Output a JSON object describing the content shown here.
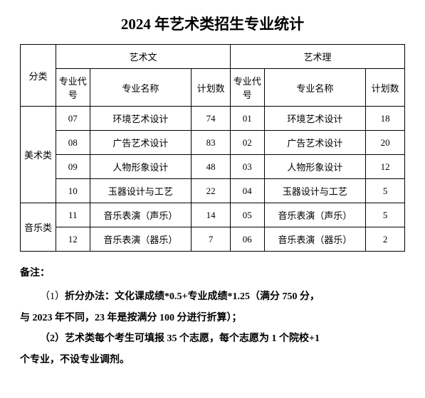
{
  "title": "2024 年艺术类招生专业统计",
  "table": {
    "header1": {
      "category": "分类",
      "arts_wen": "艺术文",
      "arts_li": "艺术理"
    },
    "header2": {
      "code": "专业代号",
      "name": "专业名称",
      "plan": "计划数",
      "plan2": "计划数"
    },
    "categories": [
      "美术类",
      "音乐类"
    ],
    "rows": [
      {
        "wc": "07",
        "wn": "环境艺术设计",
        "wp": "74",
        "lc": "01",
        "ln": "环境艺术设计",
        "lp": "18"
      },
      {
        "wc": "08",
        "wn": "广告艺术设计",
        "wp": "83",
        "lc": "02",
        "ln": "广告艺术设计",
        "lp": "20"
      },
      {
        "wc": "09",
        "wn": "人物形象设计",
        "wp": "48",
        "lc": "03",
        "ln": "人物形象设计",
        "lp": "12"
      },
      {
        "wc": "10",
        "wn": "玉器设计与工艺",
        "wp": "22",
        "lc": "04",
        "ln": "玉器设计与工艺",
        "lp": "5"
      },
      {
        "wc": "11",
        "wn": "音乐表演（声乐）",
        "wp": "14",
        "lc": "05",
        "ln": "音乐表演（声乐）",
        "lp": "5"
      },
      {
        "wc": "12",
        "wn": "音乐表演（器乐）",
        "wp": "7",
        "lc": "06",
        "ln": "音乐表演（器乐）",
        "lp": "2"
      }
    ]
  },
  "notes": {
    "label": "备注：",
    "n1a": "（1）",
    "n1b": "折分办法：文化课成绩*0.5+专业成绩*1.25（满分 750 分，",
    "n1c": "与 2023 年不同，23 年是按满分 100 分进行折算）；",
    "n2a": "（2）艺术类每个考生可填报 35 个志愿，每个志愿为 1 个院校+1",
    "n2b": "个专业，不设专业调剂。"
  }
}
